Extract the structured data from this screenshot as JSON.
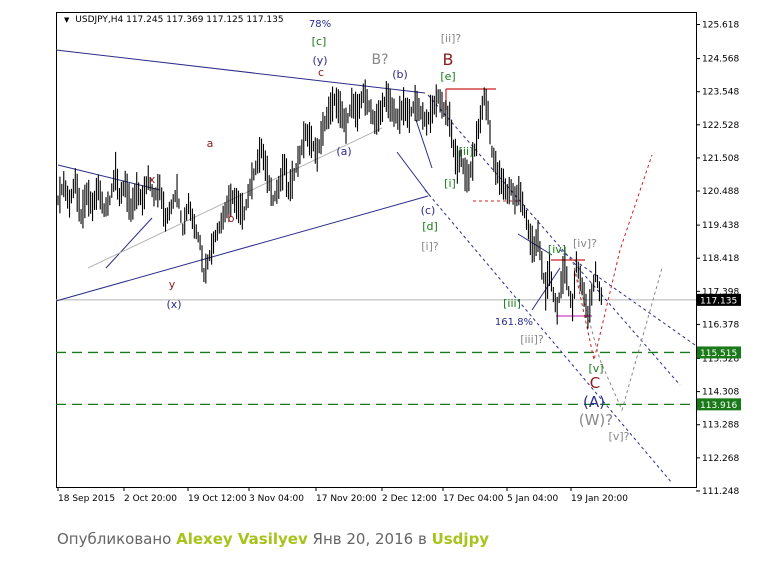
{
  "header": {
    "symbol": "USDJPY,H4",
    "open": "117.245",
    "high": "117.369",
    "low": "117.125",
    "close": "117.135"
  },
  "credit": {
    "published": "Опубликовано",
    "author": "Alexey Vasilyev",
    "date": "Янв 20, 2016",
    "in_word": "в",
    "symbol": "Usdjpy"
  },
  "chart_data": {
    "type": "line",
    "series_kind": "candlestick-price",
    "ylim": [
      111.2,
      125.9
    ],
    "y_ticks": [
      "125.618",
      "124.568",
      "123.548",
      "122.528",
      "121.508",
      "120.488",
      "119.438",
      "118.418",
      "117.398",
      "116.378",
      "115.328",
      "114.308",
      "113.288",
      "112.268",
      "111.248"
    ],
    "x_ticks": [
      "18 Sep 2015",
      "2 Oct 20:00",
      "19 Oct 12:00",
      "3 Nov 04:00",
      "17 Nov 20:00",
      "2 Dec 12:00",
      "17 Dec 04:00",
      "5 Jan 04:00",
      "19 Jan 20:00"
    ],
    "price_tags": [
      {
        "value": 117.135,
        "text": "117.135",
        "color": "#000000"
      },
      {
        "value": 115.515,
        "text": "115.515",
        "color": "#1a7a1a"
      },
      {
        "value": 113.916,
        "text": "113.916",
        "color": "#1a7a1a"
      }
    ],
    "price_path": [
      [
        0,
        120.2
      ],
      [
        3,
        120.7
      ],
      [
        6,
        120.1
      ],
      [
        9,
        120.8
      ],
      [
        12,
        119.7
      ],
      [
        15,
        120.4
      ],
      [
        18,
        120.0
      ],
      [
        21,
        120.6
      ],
      [
        24,
        119.9
      ],
      [
        27,
        120.2
      ],
      [
        30,
        121.1
      ],
      [
        32,
        120.3
      ],
      [
        35,
        120.7
      ],
      [
        38,
        119.9
      ],
      [
        41,
        120.5
      ],
      [
        44,
        120.2
      ],
      [
        47,
        120.9
      ],
      [
        50,
        120.3
      ],
      [
        53,
        120.6
      ],
      [
        56,
        119.6
      ],
      [
        59,
        120.0
      ],
      [
        62,
        120.5
      ],
      [
        65,
        119.3
      ],
      [
        68,
        120.1
      ],
      [
        71,
        119.4
      ],
      [
        74,
        118.9
      ],
      [
        76,
        117.9
      ],
      [
        79,
        118.5
      ],
      [
        82,
        119.1
      ],
      [
        85,
        119.5
      ],
      [
        88,
        120.0
      ],
      [
        91,
        120.3
      ],
      [
        94,
        120.0
      ],
      [
        97,
        119.8
      ],
      [
        100,
        120.6
      ],
      [
        103,
        121.2
      ],
      [
        106,
        121.8
      ],
      [
        109,
        121.0
      ],
      [
        112,
        120.2
      ],
      [
        115,
        120.6
      ],
      [
        118,
        121.3
      ],
      [
        120,
        120.5
      ],
      [
        123,
        121.0
      ],
      [
        126,
        121.6
      ],
      [
        129,
        122.3
      ],
      [
        132,
        122.0
      ],
      [
        135,
        121.6
      ],
      [
        138,
        122.4
      ],
      [
        141,
        122.9
      ],
      [
        144,
        123.3
      ],
      [
        147,
        123.0
      ],
      [
        150,
        122.5
      ],
      [
        153,
        123.2
      ],
      [
        156,
        122.9
      ],
      [
        159,
        123.5
      ],
      [
        162,
        123.1
      ],
      [
        165,
        122.6
      ],
      [
        168,
        122.9
      ],
      [
        171,
        123.4
      ],
      [
        174,
        123.0
      ],
      [
        177,
        122.7
      ],
      [
        180,
        123.1
      ],
      [
        183,
        122.8
      ],
      [
        186,
        123.2
      ],
      [
        189,
        122.9
      ],
      [
        192,
        122.6
      ],
      [
        195,
        123.0
      ],
      [
        198,
        123.4
      ],
      [
        201,
        123.0
      ],
      [
        204,
        122.7
      ],
      [
        206,
        121.8
      ],
      [
        208,
        121.3
      ],
      [
        210,
        121.5
      ],
      [
        212,
        121.0
      ],
      [
        214,
        120.9
      ],
      [
        216,
        121.4
      ],
      [
        218,
        122.1
      ],
      [
        220,
        122.7
      ],
      [
        222,
        123.4
      ],
      [
        224,
        122.9
      ],
      [
        226,
        121.7
      ],
      [
        228,
        121.2
      ],
      [
        230,
        120.9
      ],
      [
        232,
        120.7
      ],
      [
        234,
        120.4
      ],
      [
        236,
        120.6
      ],
      [
        238,
        120.2
      ],
      [
        240,
        120.5
      ],
      [
        242,
        120.1
      ],
      [
        244,
        119.6
      ],
      [
        246,
        119.0
      ],
      [
        248,
        118.7
      ],
      [
        250,
        119.1
      ],
      [
        252,
        118.2
      ],
      [
        254,
        117.4
      ],
      [
        256,
        118.1
      ],
      [
        258,
        117.3
      ],
      [
        260,
        116.8
      ],
      [
        262,
        117.6
      ],
      [
        264,
        118.2
      ],
      [
        266,
        117.4
      ],
      [
        268,
        116.9
      ],
      [
        270,
        118.3
      ],
      [
        272,
        117.8
      ],
      [
        274,
        117.3
      ],
      [
        276,
        116.6
      ],
      [
        278,
        117.3
      ],
      [
        280,
        118.0
      ],
      [
        282,
        117.4
      ],
      [
        284,
        117.1
      ]
    ],
    "waves": [
      {
        "text": "x",
        "color": "#8b1a1a"
      },
      {
        "text": "y",
        "color": "#8b1a1a"
      },
      {
        "text": "(x)",
        "color": "#2b2b8c"
      },
      {
        "text": "a",
        "color": "#8b1a1a"
      },
      {
        "text": "b",
        "color": "#8b1a1a"
      },
      {
        "text": "c",
        "color": "#8b1a1a"
      },
      {
        "text": "(a)",
        "color": "#2b2b8c"
      },
      {
        "text": "(y)",
        "color": "#2b2b8c"
      },
      {
        "text": "[c]",
        "color": "#1a7a1a"
      },
      {
        "text": "78%",
        "color": "#2b2b8c"
      },
      {
        "text": "B?",
        "color": "#888888"
      },
      {
        "text": "(b)",
        "color": "#2b2b8c"
      },
      {
        "text": "(c)",
        "color": "#2b2b8c"
      },
      {
        "text": "[d]",
        "color": "#1a7a1a"
      },
      {
        "text": "[i]?",
        "color": "#888888"
      },
      {
        "text": "[ii]?",
        "color": "#888888"
      },
      {
        "text": "B",
        "color": "#8b1a1a"
      },
      {
        "text": "[e]",
        "color": "#1a7a1a"
      },
      {
        "text": "[ii]",
        "color": "#1a7a1a"
      },
      {
        "text": "[i]",
        "color": "#1a7a1a"
      },
      {
        "text": "[iii]",
        "color": "#1a7a1a"
      },
      {
        "text": "[iv]",
        "color": "#1a7a1a"
      },
      {
        "text": "[iv]?",
        "color": "#888888"
      },
      {
        "text": "161.8%",
        "color": "#2b2b8c"
      },
      {
        "text": "[iii]?",
        "color": "#888888"
      },
      {
        "text": "[v]",
        "color": "#1a7a1a"
      },
      {
        "text": "C",
        "color": "#8b1a1a"
      },
      {
        "text": "(A)",
        "color": "#2b2b8c"
      },
      {
        "text": "(W)?",
        "color": "#888888"
      },
      {
        "text": "[v]?",
        "color": "#888888"
      }
    ]
  },
  "colors": {
    "axis": "#000000",
    "green_dash": "#1a7a1a",
    "navy": "#2b2b8c",
    "red": "#cc2222"
  }
}
